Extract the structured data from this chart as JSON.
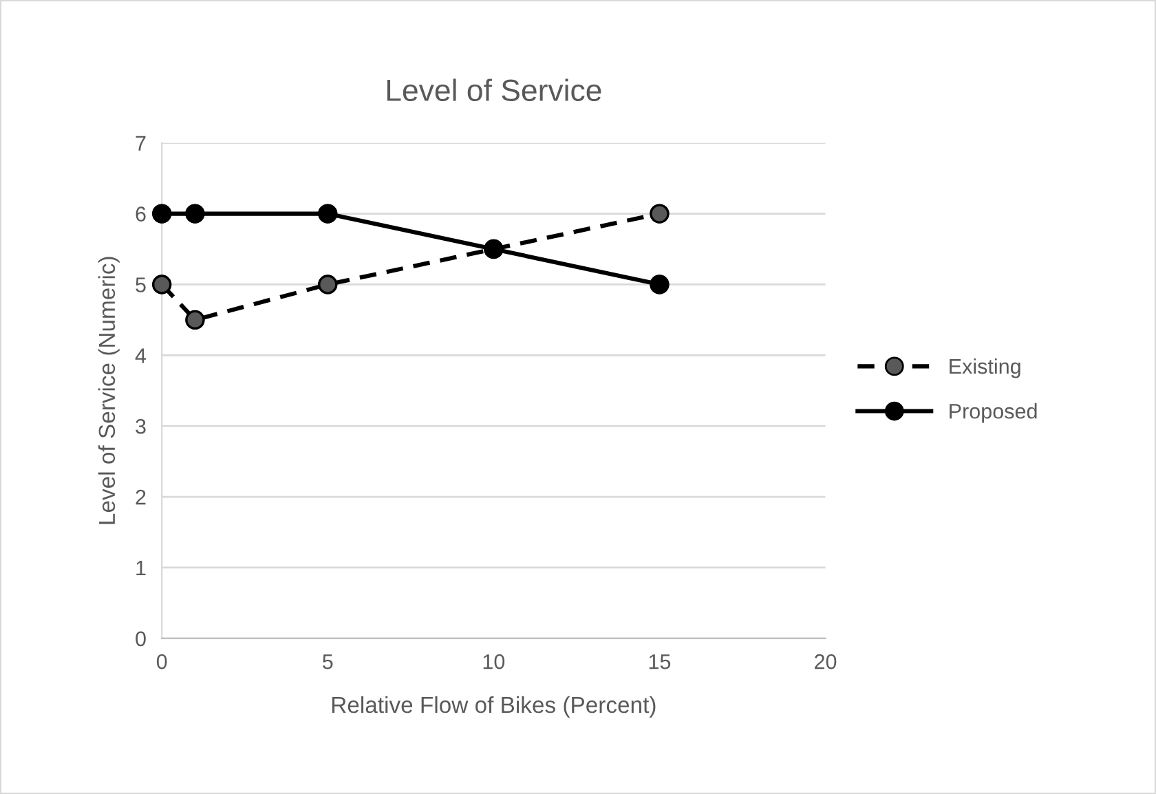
{
  "chart_data": {
    "type": "line",
    "title": "Level of Service",
    "xlabel": "Relative Flow of Bikes (Percent)",
    "ylabel": "Level of Service (Numeric)",
    "x": [
      0,
      1,
      5,
      10,
      15
    ],
    "series": [
      {
        "name": "Existing",
        "color": "#000000",
        "colors": [
          "#595959",
          "#595959",
          "#595959",
          "#595959",
          "#595959"
        ],
        "line_style": "dashed",
        "values": [
          5,
          4.5,
          5,
          5.5,
          6
        ]
      },
      {
        "name": "Proposed",
        "color": "#000000",
        "colors": [
          "#000000",
          "#000000",
          "#000000",
          "#000000",
          "#000000"
        ],
        "line_style": "solid",
        "values": [
          6,
          6,
          6,
          5.5,
          5
        ]
      }
    ],
    "marker": "circle",
    "xlim": [
      0,
      20
    ],
    "xticks": [
      0,
      5,
      10,
      15,
      20
    ],
    "ylim": [
      0,
      7
    ],
    "yticks": [
      0,
      1,
      2,
      3,
      4,
      5,
      6,
      7
    ],
    "grid": "y",
    "legend": "right"
  }
}
